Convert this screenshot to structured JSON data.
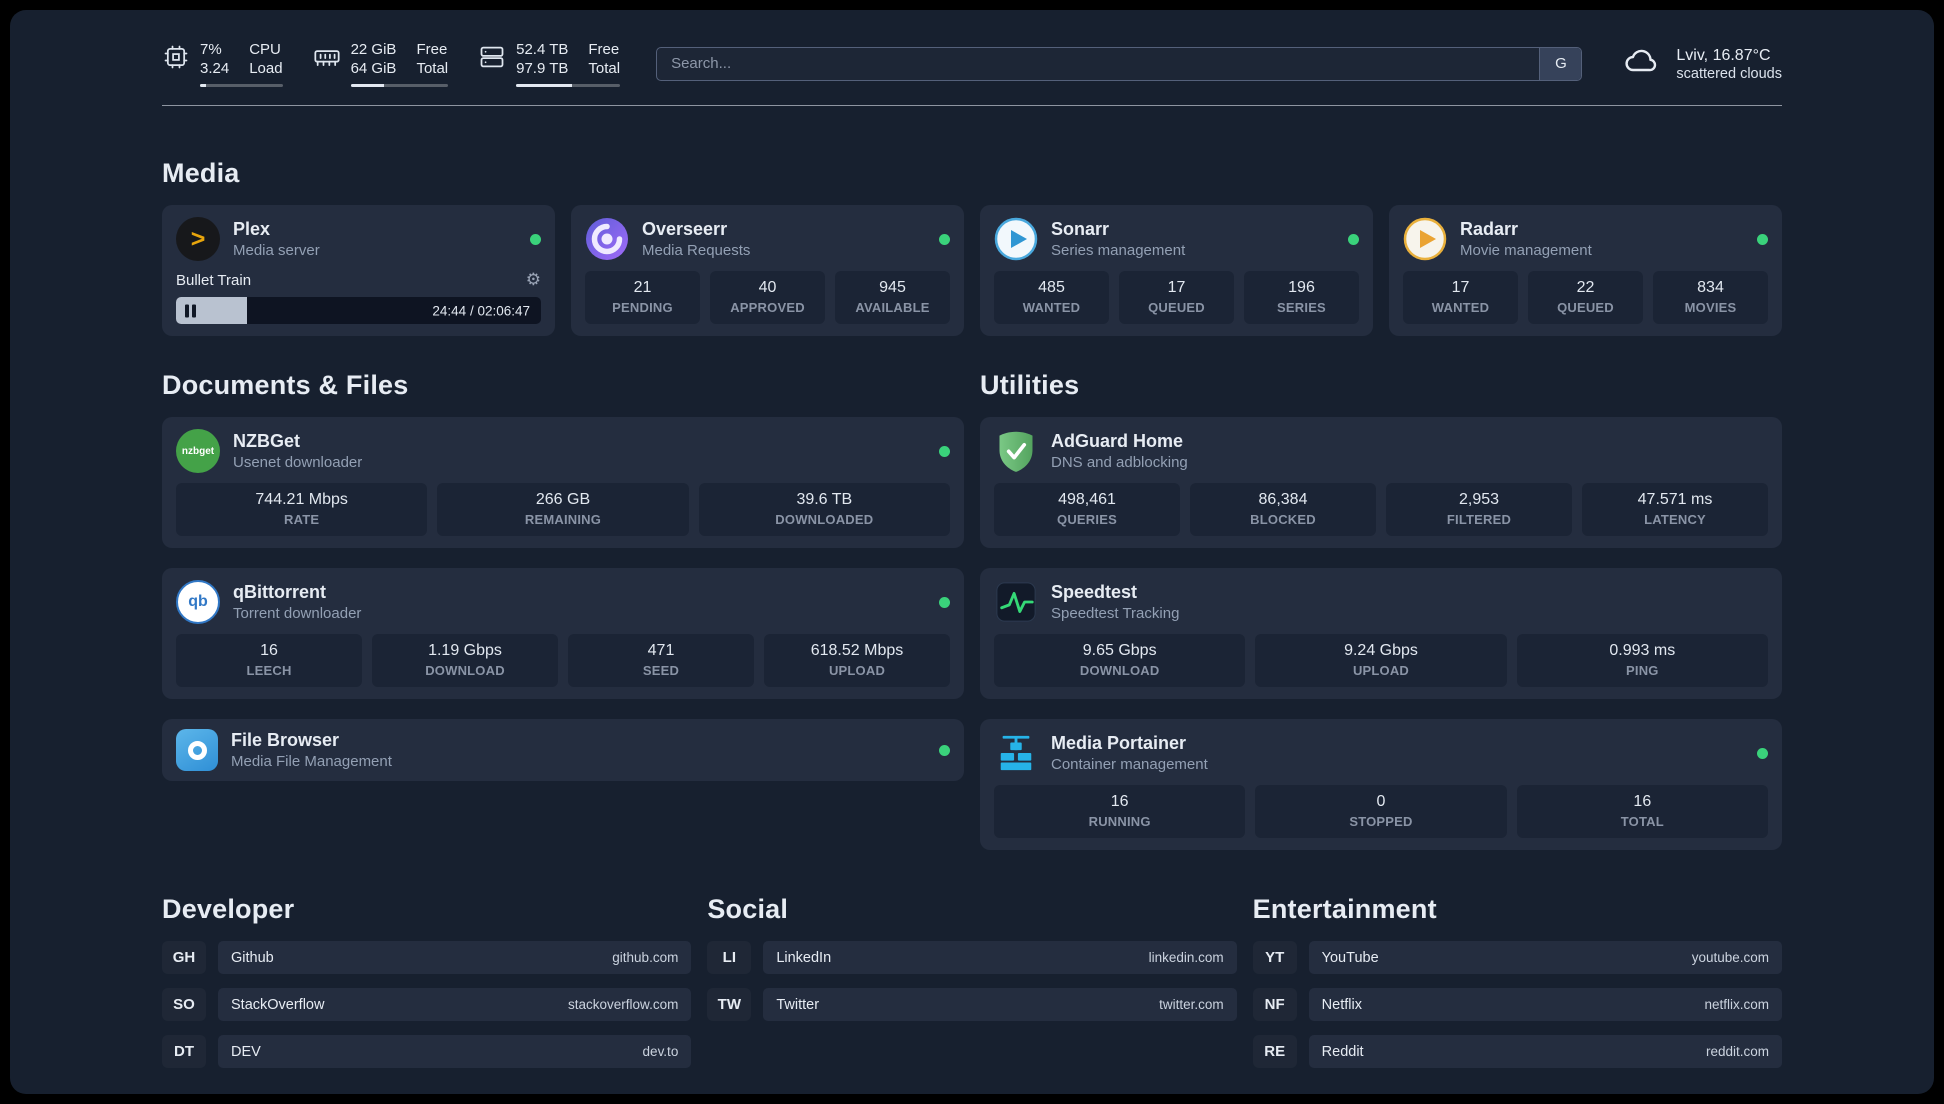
{
  "header": {
    "cpu": {
      "value_top": "7%",
      "value_bottom": "3.24",
      "label_top": "CPU",
      "label_bottom": "Load",
      "bar_percent": 7
    },
    "memory": {
      "value_top": "22 GiB",
      "value_bottom": "64 GiB",
      "label_top": "Free",
      "label_bottom": "Total",
      "bar_percent": 34
    },
    "storage": {
      "value_top": "52.4 TB",
      "value_bottom": "97.9 TB",
      "label_top": "Free",
      "label_bottom": "Total",
      "bar_percent": 54
    },
    "search": {
      "placeholder": "Search...",
      "engine_button": "G"
    },
    "weather": {
      "location": "Lviv, 16.87°C",
      "condition": "scattered clouds"
    }
  },
  "sections": {
    "media": {
      "title": "Media",
      "cards": {
        "plex": {
          "name": "Plex",
          "description": "Media server",
          "icon_glyph": ">",
          "player": {
            "title": "Bullet Train",
            "time_display": "24:44 / 02:06:47",
            "progress_percent": 19.5
          }
        },
        "overseerr": {
          "name": "Overseerr",
          "description": "Media Requests",
          "stats": [
            {
              "value": "21",
              "label": "PENDING"
            },
            {
              "value": "40",
              "label": "APPROVED"
            },
            {
              "value": "945",
              "label": "AVAILABLE"
            }
          ]
        },
        "sonarr": {
          "name": "Sonarr",
          "description": "Series management",
          "stats": [
            {
              "value": "485",
              "label": "WANTED"
            },
            {
              "value": "17",
              "label": "QUEUED"
            },
            {
              "value": "196",
              "label": "SERIES"
            }
          ]
        },
        "radarr": {
          "name": "Radarr",
          "description": "Movie management",
          "stats": [
            {
              "value": "17",
              "label": "WANTED"
            },
            {
              "value": "22",
              "label": "QUEUED"
            },
            {
              "value": "834",
              "label": "MOVIES"
            }
          ]
        }
      }
    },
    "documents": {
      "title": "Documents & Files",
      "cards": {
        "nzbget": {
          "name": "NZBGet",
          "description": "Usenet downloader",
          "icon_text": "nzbget",
          "stats": [
            {
              "value": "744.21 Mbps",
              "label": "RATE"
            },
            {
              "value": "266 GB",
              "label": "REMAINING"
            },
            {
              "value": "39.6 TB",
              "label": "DOWNLOADED"
            }
          ]
        },
        "qbittorrent": {
          "name": "qBittorrent",
          "description": "Torrent downloader",
          "icon_text": "qb",
          "stats": [
            {
              "value": "16",
              "label": "LEECH"
            },
            {
              "value": "1.19 Gbps",
              "label": "DOWNLOAD"
            },
            {
              "value": "471",
              "label": "SEED"
            },
            {
              "value": "618.52 Mbps",
              "label": "UPLOAD"
            }
          ]
        },
        "filebrowser": {
          "name": "File Browser",
          "description": "Media File Management"
        }
      }
    },
    "utilities": {
      "title": "Utilities",
      "cards": {
        "adguard": {
          "name": "AdGuard Home",
          "description": "DNS and adblocking",
          "stats": [
            {
              "value": "498,461",
              "label": "QUERIES"
            },
            {
              "value": "86,384",
              "label": "BLOCKED"
            },
            {
              "value": "2,953",
              "label": "FILTERED"
            },
            {
              "value": "47.571 ms",
              "label": "LATENCY"
            }
          ]
        },
        "speedtest": {
          "name": "Speedtest",
          "description": "Speedtest Tracking",
          "stats": [
            {
              "value": "9.65 Gbps",
              "label": "DOWNLOAD"
            },
            {
              "value": "9.24 Gbps",
              "label": "UPLOAD"
            },
            {
              "value": "0.993 ms",
              "label": "PING"
            }
          ]
        },
        "portainer": {
          "name": "Media Portainer",
          "description": "Container management",
          "stats": [
            {
              "value": "16",
              "label": "RUNNING"
            },
            {
              "value": "0",
              "label": "STOPPED"
            },
            {
              "value": "16",
              "label": "TOTAL"
            }
          ]
        }
      }
    }
  },
  "bookmarks": {
    "developer": {
      "title": "Developer",
      "items": [
        {
          "abbr": "GH",
          "name": "Github",
          "url": "github.com"
        },
        {
          "abbr": "SO",
          "name": "StackOverflow",
          "url": "stackoverflow.com"
        },
        {
          "abbr": "DT",
          "name": "DEV",
          "url": "dev.to"
        }
      ]
    },
    "social": {
      "title": "Social",
      "items": [
        {
          "abbr": "LI",
          "name": "LinkedIn",
          "url": "linkedin.com"
        },
        {
          "abbr": "TW",
          "name": "Twitter",
          "url": "twitter.com"
        }
      ]
    },
    "entertainment": {
      "title": "Entertainment",
      "items": [
        {
          "abbr": "YT",
          "name": "YouTube",
          "url": "youtube.com"
        },
        {
          "abbr": "NF",
          "name": "Netflix",
          "url": "netflix.com"
        },
        {
          "abbr": "RE",
          "name": "Reddit",
          "url": "reddit.com"
        }
      ]
    }
  },
  "colors": {
    "background": "#17202f",
    "card": "#242d3f",
    "status_online": "#3ad27b",
    "plex_accent": "#e8a50c"
  }
}
